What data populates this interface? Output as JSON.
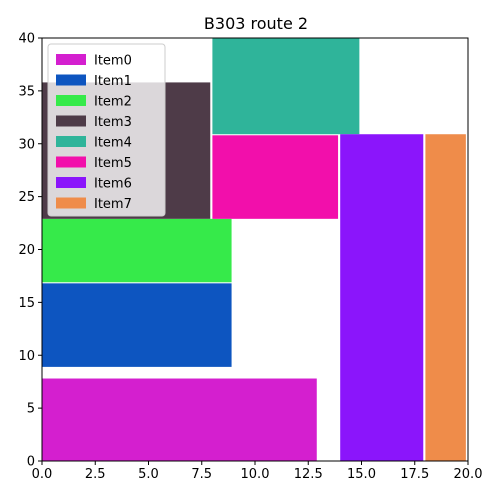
{
  "chart_data": {
    "type": "packing",
    "title": "B303 route 2",
    "xlim": [
      0,
      20
    ],
    "ylim": [
      0,
      40
    ],
    "x_ticks": [
      "0.0",
      "2.5",
      "5.0",
      "7.5",
      "10.0",
      "12.5",
      "15.0",
      "17.5",
      "20.0"
    ],
    "y_ticks": [
      "0",
      "5",
      "10",
      "15",
      "20",
      "25",
      "30",
      "35",
      "40"
    ],
    "grid": false,
    "legend_placement": "top-left",
    "items": [
      {
        "name": "Item0",
        "color": "#d41fcf",
        "x": 0,
        "y": 0,
        "w": 12.9,
        "h": 7.8
      },
      {
        "name": "Item1",
        "color": "#0d55c0",
        "x": 0,
        "y": 8.9,
        "w": 8.9,
        "h": 7.9
      },
      {
        "name": "Item2",
        "color": "#36ea4a",
        "x": 0,
        "y": 16.9,
        "w": 8.9,
        "h": 6.0
      },
      {
        "name": "Item3",
        "color": "#4e3b48",
        "x": 0,
        "y": 22.9,
        "w": 7.9,
        "h": 12.9
      },
      {
        "name": "Item4",
        "color": "#2fb49a",
        "x": 8.0,
        "y": 30.9,
        "w": 6.9,
        "h": 9.1
      },
      {
        "name": "Item5",
        "color": "#f20fab",
        "x": 8.0,
        "y": 22.9,
        "w": 5.9,
        "h": 7.9
      },
      {
        "name": "Item6",
        "color": "#8b15fb",
        "x": 14.0,
        "y": 0,
        "w": 3.9,
        "h": 30.9
      },
      {
        "name": "Item7",
        "color": "#ef8c4a",
        "x": 18.0,
        "y": 0,
        "w": 1.9,
        "h": 30.9
      }
    ]
  }
}
